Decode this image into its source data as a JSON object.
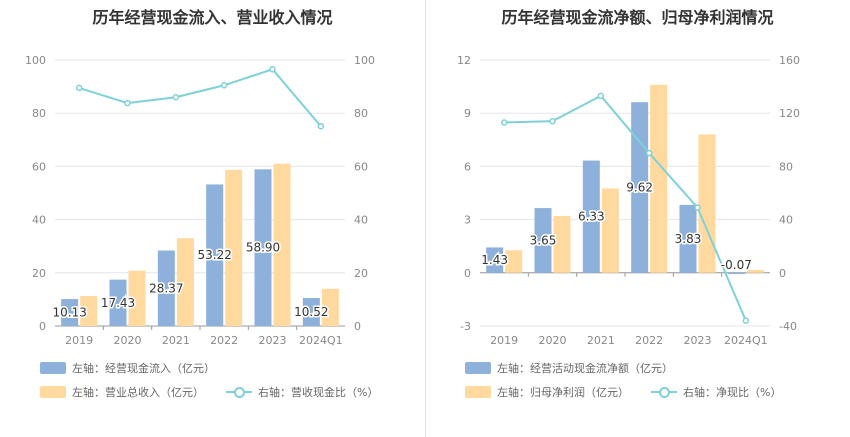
{
  "colors": {
    "bar1": "#8eb1dc",
    "bar2": "#ffd99e",
    "line": "#7fd1d8",
    "grid": "#e6e6e6",
    "axis_text": "#888888"
  },
  "chart_data": [
    {
      "type": "bar",
      "title": "历年经营现金流入、营业收入情况",
      "categories": [
        "2019",
        "2020",
        "2021",
        "2022",
        "2023",
        "2024Q1"
      ],
      "left_axis": {
        "ticks": [
          0,
          20,
          40,
          60,
          80,
          100
        ],
        "ylim": [
          0,
          100
        ]
      },
      "right_axis": {
        "ticks": [
          0,
          20,
          40,
          60,
          80,
          100
        ],
        "ylim": [
          0,
          100
        ]
      },
      "series": [
        {
          "name": "左轴：经营现金流入（亿元）",
          "kind": "bar",
          "axis": "left",
          "values": [
            10.13,
            17.43,
            28.37,
            53.22,
            58.9,
            10.52
          ],
          "labels": [
            "10.13",
            "17.43",
            "28.37",
            "53.22",
            "58.90",
            "10.52"
          ]
        },
        {
          "name": "左轴：营业总收入（亿元）",
          "kind": "bar",
          "axis": "left",
          "values": [
            11.3,
            20.8,
            33.0,
            58.7,
            61.0,
            14.0
          ]
        },
        {
          "name": "右轴：营收现金比（%）",
          "kind": "line",
          "axis": "right",
          "values": [
            89.5,
            83.8,
            86.0,
            90.5,
            96.5,
            75.1
          ]
        }
      ]
    },
    {
      "type": "bar",
      "title": "历年经营现金流净额、归母净利润情况",
      "categories": [
        "2019",
        "2020",
        "2021",
        "2022",
        "2023",
        "2024Q1"
      ],
      "left_axis": {
        "ticks": [
          -3,
          0,
          3,
          6,
          9,
          12
        ],
        "ylim": [
          -3,
          12
        ]
      },
      "right_axis": {
        "ticks": [
          -40,
          0,
          40,
          80,
          120,
          160
        ],
        "ylim": [
          -40,
          160
        ]
      },
      "series": [
        {
          "name": "左轴：经营活动现金流净额（亿元）",
          "kind": "bar",
          "axis": "left",
          "values": [
            1.43,
            3.65,
            6.33,
            9.62,
            3.83,
            -0.07
          ],
          "labels": [
            "1.43",
            "3.65",
            "6.33",
            "9.62",
            "3.83",
            "-0.07"
          ]
        },
        {
          "name": "左轴：归母净利润（亿元）",
          "kind": "bar",
          "axis": "left",
          "values": [
            1.27,
            3.2,
            4.75,
            10.6,
            7.8,
            0.16
          ]
        },
        {
          "name": "右轴：净现比（%）",
          "kind": "line",
          "axis": "right",
          "values": [
            113,
            114,
            133,
            90,
            49,
            -36
          ]
        }
      ]
    }
  ]
}
